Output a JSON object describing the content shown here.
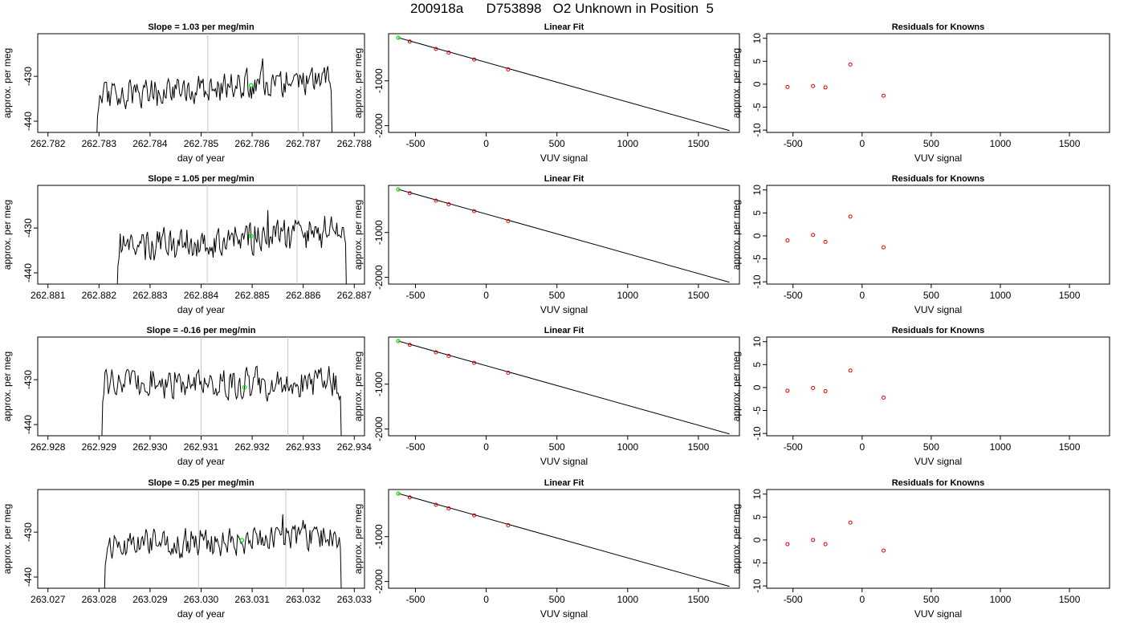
{
  "figure": {
    "title": "200918a      D753898   O2 Unknown in Position  5"
  },
  "chart_data": [
    {
      "type": "line",
      "panel": "timeseries",
      "row": 0,
      "title": "Slope =  1.03  per meg/min",
      "xlabel": "day of year",
      "ylabel": "approx. per meg",
      "xlim": [
        262.7818,
        262.7882
      ],
      "ylim": [
        -442.5,
        -420.5
      ],
      "xticks": [
        262.782,
        262.783,
        262.784,
        262.785,
        262.786,
        262.787,
        262.788
      ],
      "xtick_labels": [
        "262.782",
        "262.783",
        "262.784",
        "262.785",
        "262.786",
        "262.787",
        "262.788"
      ],
      "yticks": [
        -440,
        -430
      ],
      "ytick_labels": [
        "-440",
        "-430"
      ],
      "vlines": [
        262.78513,
        262.7869
      ],
      "highlight_point": {
        "x": 262.78598,
        "y": -432.0
      },
      "trace": {
        "x_start": 262.78295,
        "x_end": 262.78757,
        "seed": 11,
        "base": -432.6,
        "trend": 2.2,
        "noise": 1.4,
        "first_value": -446,
        "last_value": -446,
        "peak_x": 262.7862,
        "peak_y": -426
      }
    },
    {
      "type": "line",
      "panel": "timeseries",
      "row": 1,
      "title": "Slope =  1.05  per meg/min",
      "xlabel": "day of year",
      "ylabel": "approx. per meg",
      "xlim": [
        262.8808,
        262.8872
      ],
      "ylim": [
        -442.5,
        -420.5
      ],
      "xticks": [
        262.881,
        262.882,
        262.883,
        262.884,
        262.885,
        262.886,
        262.887
      ],
      "xtick_labels": [
        "262.881",
        "262.882",
        "262.883",
        "262.884",
        "262.885",
        "262.886",
        "262.887"
      ],
      "yticks": [
        -440,
        -430
      ],
      "ytick_labels": [
        "-440",
        "-430"
      ],
      "vlines": [
        262.88412,
        262.88588
      ],
      "highlight_point": {
        "x": 262.88498,
        "y": -431.8
      },
      "trace": {
        "x_start": 262.88235,
        "x_end": 262.88685,
        "seed": 23,
        "base": -432.4,
        "trend": 2.0,
        "noise": 1.6,
        "first_value": -446,
        "last_value": -446,
        "peak_x": 262.8853,
        "peak_y": -426
      }
    },
    {
      "type": "line",
      "panel": "timeseries",
      "row": 2,
      "title": "Slope =  -0.16  per meg/min",
      "xlabel": "day of year",
      "ylabel": "approx. per meg",
      "xlim": [
        262.9278,
        262.9342
      ],
      "ylim": [
        -442.5,
        -420.5
      ],
      "xticks": [
        262.928,
        262.929,
        262.93,
        262.931,
        262.932,
        262.933,
        262.934
      ],
      "xtick_labels": [
        "262.928",
        "262.929",
        "262.930",
        "262.931",
        "262.932",
        "262.933",
        "262.934"
      ],
      "yticks": [
        -440,
        -430
      ],
      "ytick_labels": [
        "-440",
        "-430"
      ],
      "vlines": [
        262.931,
        262.9327
      ],
      "highlight_point": {
        "x": 262.93185,
        "y": -431.7
      },
      "trace": {
        "x_start": 262.92905,
        "x_end": 262.93375,
        "seed": 37,
        "base": -430.8,
        "trend": 0.2,
        "noise": 1.5,
        "first_value": -446,
        "last_value": -446,
        "peak_x": 262.9335,
        "peak_y": -427
      }
    },
    {
      "type": "line",
      "panel": "timeseries",
      "row": 3,
      "title": "Slope =  0.25  per meg/min",
      "xlabel": "day of year",
      "ylabel": "approx. per meg",
      "xlim": [
        263.0268,
        263.0332
      ],
      "ylim": [
        -442.5,
        -420.5
      ],
      "xticks": [
        263.027,
        263.028,
        263.029,
        263.03,
        263.031,
        263.032,
        263.033
      ],
      "xtick_labels": [
        "263.027",
        "263.028",
        "263.029",
        "263.030",
        "263.031",
        "263.032",
        "263.033"
      ],
      "yticks": [
        -440,
        -430
      ],
      "ytick_labels": [
        "-440",
        "-430"
      ],
      "vlines": [
        263.02995,
        263.03166
      ],
      "highlight_point": {
        "x": 263.0308,
        "y": -431.8
      },
      "trace": {
        "x_start": 263.0281,
        "x_end": 263.03275,
        "seed": 53,
        "base": -432.0,
        "trend": 1.4,
        "noise": 1.4,
        "first_value": -446,
        "last_value": -446,
        "peak_x": 263.0316,
        "peak_y": -426
      }
    },
    {
      "type": "scatter",
      "panel": "fit",
      "row": 0,
      "title": "Linear Fit",
      "xlabel": "VUV signal",
      "ylabel": "approx. per meg",
      "xlim": [
        -690,
        1790
      ],
      "ylim": [
        -2150,
        50
      ],
      "xticks": [
        -500,
        0,
        500,
        1000,
        1500
      ],
      "xtick_labels": [
        "-500",
        "0",
        "500",
        "1000",
        "1500"
      ],
      "yticks": [
        -2000,
        -1000
      ],
      "ytick_labels": [
        "-2000",
        "-1000"
      ],
      "line": {
        "x": [
          -620,
          1720
        ],
        "y": [
          -40,
          -2110
        ]
      },
      "known_points": {
        "x": [
          -540,
          -355,
          -265,
          -85,
          155
        ],
        "y": [
          -125,
          -290,
          -370,
          -525,
          -745
        ]
      },
      "unknown_point": {
        "x": -622,
        "y": -40
      }
    },
    {
      "type": "scatter",
      "panel": "fit",
      "row": 1,
      "title": "Linear Fit",
      "xlabel": "VUV signal",
      "ylabel": "approx. per meg",
      "xlim": [
        -690,
        1790
      ],
      "ylim": [
        -2150,
        50
      ],
      "xticks": [
        -500,
        0,
        500,
        1000,
        1500
      ],
      "xtick_labels": [
        "-500",
        "0",
        "500",
        "1000",
        "1500"
      ],
      "yticks": [
        -2000,
        -1000
      ],
      "ytick_labels": [
        "-2000",
        "-1000"
      ],
      "line": {
        "x": [
          -620,
          1720
        ],
        "y": [
          -40,
          -2110
        ]
      },
      "known_points": {
        "x": [
          -540,
          -355,
          -265,
          -85,
          155
        ],
        "y": [
          -125,
          -290,
          -370,
          -525,
          -745
        ]
      },
      "unknown_point": {
        "x": -622,
        "y": -40
      }
    },
    {
      "type": "scatter",
      "panel": "fit",
      "row": 2,
      "title": "Linear Fit",
      "xlabel": "VUV signal",
      "ylabel": "approx. per meg",
      "xlim": [
        -690,
        1790
      ],
      "ylim": [
        -2150,
        50
      ],
      "xticks": [
        -500,
        0,
        500,
        1000,
        1500
      ],
      "xtick_labels": [
        "-500",
        "0",
        "500",
        "1000",
        "1500"
      ],
      "yticks": [
        -2000,
        -1000
      ],
      "ytick_labels": [
        "-2000",
        "-1000"
      ],
      "line": {
        "x": [
          -620,
          1720
        ],
        "y": [
          -40,
          -2110
        ]
      },
      "known_points": {
        "x": [
          -540,
          -355,
          -265,
          -85,
          155
        ],
        "y": [
          -125,
          -290,
          -370,
          -525,
          -745
        ]
      },
      "unknown_point": {
        "x": -622,
        "y": -40
      }
    },
    {
      "type": "scatter",
      "panel": "fit",
      "row": 3,
      "title": "Linear Fit",
      "xlabel": "VUV signal",
      "ylabel": "approx. per meg",
      "xlim": [
        -690,
        1790
      ],
      "ylim": [
        -2150,
        50
      ],
      "xticks": [
        -500,
        0,
        500,
        1000,
        1500
      ],
      "xtick_labels": [
        "-500",
        "0",
        "500",
        "1000",
        "1500"
      ],
      "yticks": [
        -2000,
        -1000
      ],
      "ytick_labels": [
        "-2000",
        "-1000"
      ],
      "line": {
        "x": [
          -620,
          1720
        ],
        "y": [
          -40,
          -2110
        ]
      },
      "known_points": {
        "x": [
          -540,
          -355,
          -265,
          -85,
          155
        ],
        "y": [
          -125,
          -290,
          -370,
          -525,
          -745
        ]
      },
      "unknown_point": {
        "x": -622,
        "y": -40
      }
    },
    {
      "type": "scatter",
      "panel": "residuals",
      "row": 0,
      "title": "Residuals for Knowns",
      "xlabel": "VUV signal",
      "ylabel": "approx. per meg",
      "xlim": [
        -690,
        1790
      ],
      "ylim": [
        -10.5,
        11
      ],
      "xticks": [
        -500,
        0,
        500,
        1000,
        1500
      ],
      "xtick_labels": [
        "-500",
        "0",
        "500",
        "1000",
        "1500"
      ],
      "yticks": [
        -10,
        -5,
        0,
        5,
        10
      ],
      "ytick_labels": [
        "-10",
        "-5",
        "0",
        "5",
        "10"
      ],
      "points": {
        "x": [
          -540,
          -355,
          -265,
          -85,
          155
        ],
        "y": [
          -0.6,
          -0.4,
          -0.7,
          4.3,
          -2.5
        ]
      }
    },
    {
      "type": "scatter",
      "panel": "residuals",
      "row": 1,
      "title": "Residuals for Knowns",
      "xlabel": "VUV signal",
      "ylabel": "approx. per meg",
      "xlim": [
        -690,
        1790
      ],
      "ylim": [
        -10.5,
        11
      ],
      "xticks": [
        -500,
        0,
        500,
        1000,
        1500
      ],
      "xtick_labels": [
        "-500",
        "0",
        "500",
        "1000",
        "1500"
      ],
      "yticks": [
        -10,
        -5,
        0,
        5,
        10
      ],
      "ytick_labels": [
        "-10",
        "-5",
        "0",
        "5",
        "10"
      ],
      "points": {
        "x": [
          -540,
          -355,
          -265,
          -85,
          155
        ],
        "y": [
          -1.0,
          0.2,
          -1.3,
          4.2,
          -2.5
        ]
      }
    },
    {
      "type": "scatter",
      "panel": "residuals",
      "row": 2,
      "title": "Residuals for Knowns",
      "xlabel": "VUV signal",
      "ylabel": "approx. per meg",
      "xlim": [
        -690,
        1790
      ],
      "ylim": [
        -10.5,
        11
      ],
      "xticks": [
        -500,
        0,
        500,
        1000,
        1500
      ],
      "xtick_labels": [
        "-500",
        "0",
        "500",
        "1000",
        "1500"
      ],
      "yticks": [
        -10,
        -5,
        0,
        5,
        10
      ],
      "ytick_labels": [
        "-10",
        "-5",
        "0",
        "5",
        "10"
      ],
      "points": {
        "x": [
          -540,
          -355,
          -265,
          -85,
          155
        ],
        "y": [
          -0.7,
          -0.1,
          -0.8,
          3.7,
          -2.2
        ]
      }
    },
    {
      "type": "scatter",
      "panel": "residuals",
      "row": 3,
      "title": "Residuals for Knowns",
      "xlabel": "VUV signal",
      "ylabel": "approx. per meg",
      "xlim": [
        -690,
        1790
      ],
      "ylim": [
        -10.5,
        11
      ],
      "xticks": [
        -500,
        0,
        500,
        1000,
        1500
      ],
      "xtick_labels": [
        "-500",
        "0",
        "500",
        "1000",
        "1500"
      ],
      "yticks": [
        -10,
        -5,
        0,
        5,
        10
      ],
      "ytick_labels": [
        "-10",
        "-5",
        "0",
        "5",
        "10"
      ],
      "points": {
        "x": [
          -540,
          -355,
          -265,
          -85,
          155
        ],
        "y": [
          -0.9,
          0.0,
          -0.9,
          3.8,
          -2.3
        ]
      }
    }
  ],
  "colors": {
    "axis": "#000000",
    "trace": "#000000",
    "vline": "#c8c8c8",
    "highlight": "#00e000",
    "known_marker": "#dd0000",
    "fit_line": "#000000"
  }
}
